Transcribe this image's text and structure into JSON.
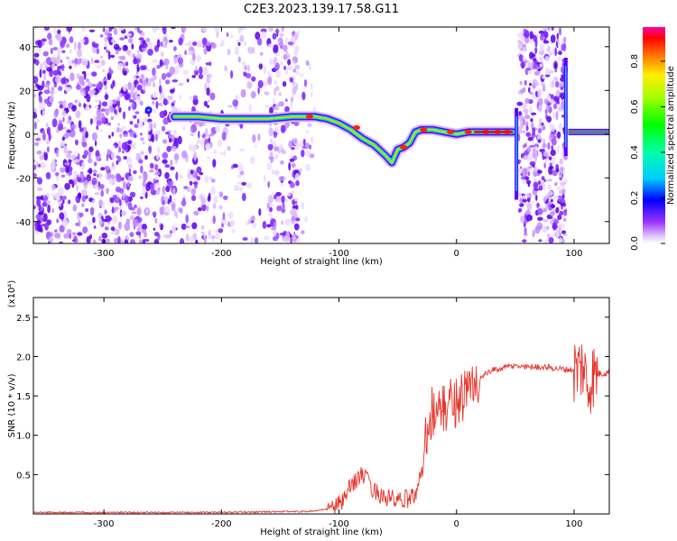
{
  "title": "C2E3.2023.139.17.58.G11",
  "chart_data": [
    {
      "type": "heatmap",
      "xlabel": "Height of straight line (km)",
      "ylabel": "Frequency (Hz)",
      "xlim": [
        -360,
        130
      ],
      "ylim": [
        -50,
        49
      ],
      "xticks": [
        -300,
        -200,
        -100,
        0,
        100
      ],
      "yticks": [
        -40,
        -20,
        0,
        20,
        40
      ],
      "colorbar": {
        "label": "Normalized spectral amplitude",
        "ticks": [
          "0.0",
          "0.2",
          "0.4",
          "0.6",
          "0.8"
        ],
        "range": [
          0,
          0.95
        ]
      },
      "signal_trace": {
        "x": [
          -240,
          -220,
          -200,
          -180,
          -160,
          -140,
          -120,
          -110,
          -100,
          -90,
          -80,
          -70,
          -60,
          -55,
          -50,
          -45,
          -40,
          -35,
          -30,
          -20,
          -10,
          0,
          10,
          20,
          30,
          40,
          48
        ],
        "y": [
          8,
          8,
          7,
          7,
          7,
          8,
          8,
          7,
          5,
          2,
          -2,
          -5,
          -10,
          -13,
          -7,
          -6,
          -4,
          1,
          2,
          2,
          1,
          0,
          1,
          1,
          1,
          1,
          1
        ]
      },
      "grid": false
    },
    {
      "type": "line",
      "xlabel": "Height of straight line (km)",
      "ylabel": "SNR (10 * v/v)",
      "y_multiplier": "(x10⁴)",
      "xlim": [
        -360,
        130
      ],
      "ylim": [
        0,
        2.75
      ],
      "xticks": [
        -300,
        -200,
        -100,
        0,
        100
      ],
      "yticks": [
        0.5,
        1.0,
        1.5,
        2.0,
        2.5
      ],
      "yticklabels": [
        "0.5",
        "1.0",
        "1.5",
        "2.0",
        "2.5"
      ],
      "series": [
        {
          "color": "#e8342a",
          "x": [
            -360,
            -300,
            -200,
            -150,
            -130,
            -120,
            -110,
            -100,
            -95,
            -90,
            -85,
            -80,
            -75,
            -70,
            -65,
            -60,
            -55,
            -50,
            -45,
            -40,
            -35,
            -30,
            -28,
            -25,
            -22,
            -20,
            -18,
            -15,
            -10,
            -5,
            0,
            5,
            10,
            15,
            20,
            25,
            30,
            40,
            50,
            60,
            70,
            80,
            90,
            100,
            105,
            108,
            110,
            112,
            115,
            120,
            130
          ],
          "y": [
            0.02,
            0.02,
            0.02,
            0.03,
            0.03,
            0.04,
            0.06,
            0.12,
            0.2,
            0.35,
            0.45,
            0.5,
            0.4,
            0.3,
            0.25,
            0.2,
            0.2,
            0.15,
            0.18,
            0.2,
            0.25,
            0.5,
            0.9,
            1.1,
            1.25,
            1.35,
            1.2,
            1.3,
            1.35,
            1.4,
            1.45,
            1.5,
            1.55,
            1.65,
            1.72,
            1.78,
            1.82,
            1.86,
            1.88,
            1.87,
            1.87,
            1.86,
            1.84,
            1.83,
            1.85,
            1.9,
            1.7,
            1.6,
            1.75,
            1.78,
            1.8
          ]
        }
      ],
      "grid": false
    }
  ]
}
